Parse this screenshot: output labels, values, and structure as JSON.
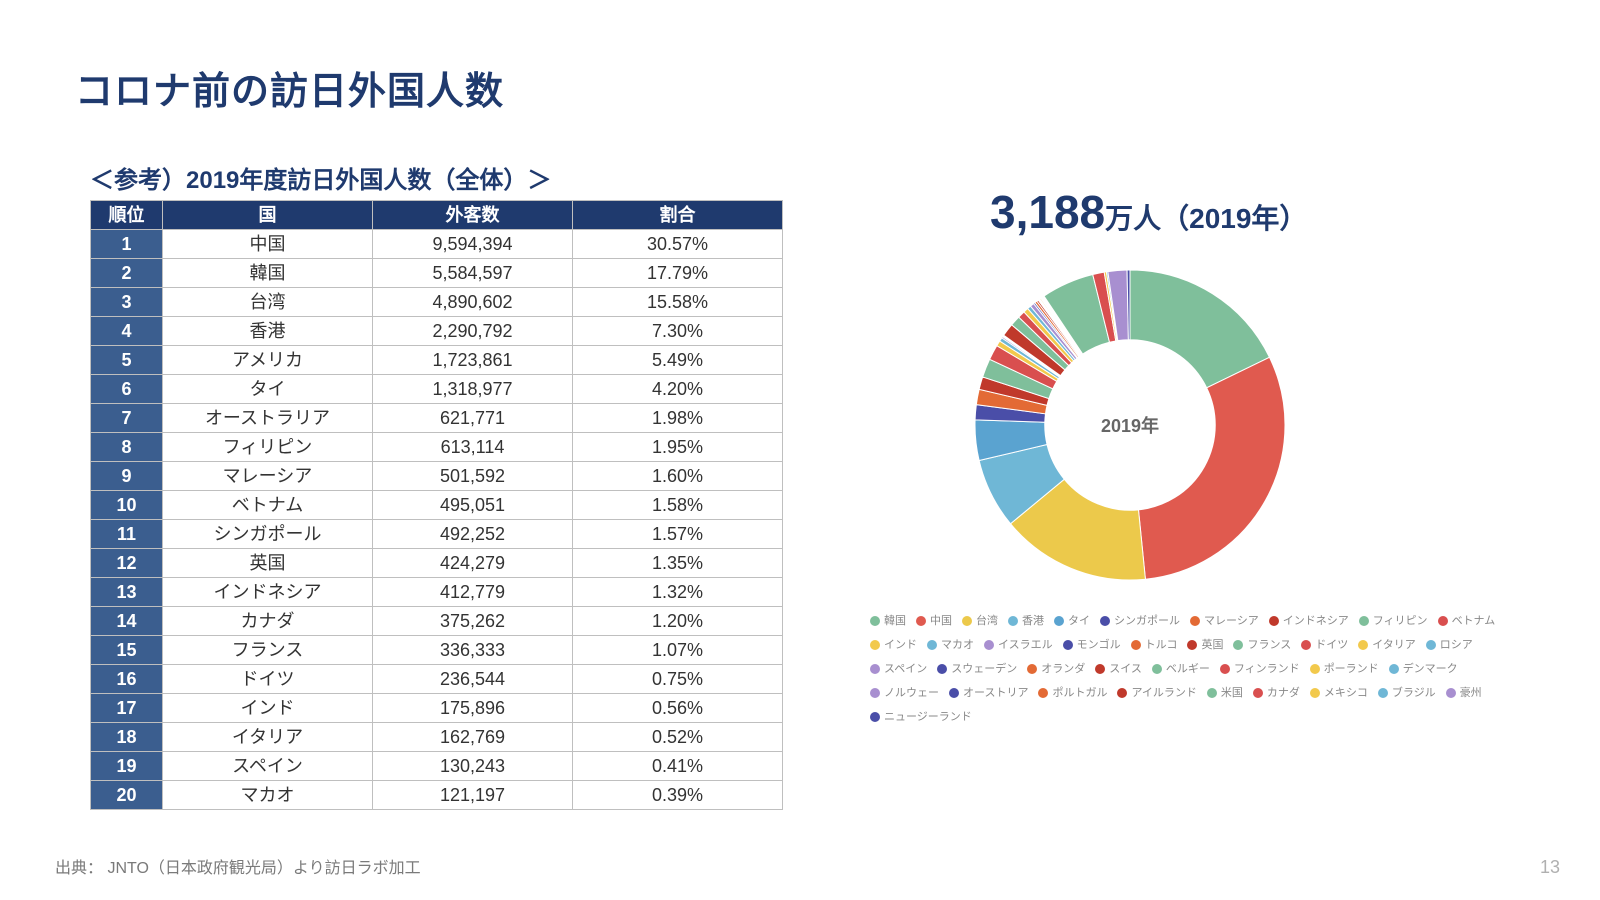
{
  "colors": {
    "title": "#1f3a6e",
    "subtitle": "#1f3a6e",
    "header_bg": "#1f3a6e",
    "rank_bg": "#3b5e8f",
    "right_title": "#1f3a6e"
  },
  "title": "コロナ前の訪日外国人数",
  "subtitle": "＜参考）2019年度訪日外国人数（全体）＞",
  "table": {
    "columns": [
      "順位",
      "国",
      "外客数",
      "割合"
    ],
    "rows": [
      [
        "1",
        "中国",
        "9,594,394",
        "30.57%"
      ],
      [
        "2",
        "韓国",
        "5,584,597",
        "17.79%"
      ],
      [
        "3",
        "台湾",
        "4,890,602",
        "15.58%"
      ],
      [
        "4",
        "香港",
        "2,290,792",
        "7.30%"
      ],
      [
        "5",
        "アメリカ",
        "1,723,861",
        "5.49%"
      ],
      [
        "6",
        "タイ",
        "1,318,977",
        "4.20%"
      ],
      [
        "7",
        "オーストラリア",
        "621,771",
        "1.98%"
      ],
      [
        "8",
        "フィリピン",
        "613,114",
        "1.95%"
      ],
      [
        "9",
        "マレーシア",
        "501,592",
        "1.60%"
      ],
      [
        "10",
        "ベトナム",
        "495,051",
        "1.58%"
      ],
      [
        "11",
        "シンガポール",
        "492,252",
        "1.57%"
      ],
      [
        "12",
        "英国",
        "424,279",
        "1.35%"
      ],
      [
        "13",
        "インドネシア",
        "412,779",
        "1.32%"
      ],
      [
        "14",
        "カナダ",
        "375,262",
        "1.20%"
      ],
      [
        "15",
        "フランス",
        "336,333",
        "1.07%"
      ],
      [
        "16",
        "ドイツ",
        "236,544",
        "0.75%"
      ],
      [
        "17",
        "インド",
        "175,896",
        "0.56%"
      ],
      [
        "18",
        "イタリア",
        "162,769",
        "0.52%"
      ],
      [
        "19",
        "スペイン",
        "130,243",
        "0.41%"
      ],
      [
        "20",
        "マカオ",
        "121,197",
        "0.39%"
      ]
    ]
  },
  "footnote": "出典： JNTO（日本政府観光局）より訪日ラボ加工",
  "pagenum": "13",
  "right": {
    "big_number": "3,188",
    "unit": "万人（2019年）",
    "center_label": "2019年"
  },
  "donut": {
    "inner_radius_pct": 55,
    "slices": [
      {
        "label": "韓国",
        "value": 17.79,
        "color": "#7fbf9b"
      },
      {
        "label": "中国",
        "value": 30.57,
        "color": "#e05a4f"
      },
      {
        "label": "台湾",
        "value": 15.58,
        "color": "#ecc94b"
      },
      {
        "label": "香港",
        "value": 7.3,
        "color": "#6fb7d6"
      },
      {
        "label": "タイ",
        "value": 4.2,
        "color": "#5aa3d0"
      },
      {
        "label": "シンガポール",
        "value": 1.57,
        "color": "#4a4ea8"
      },
      {
        "label": "マレーシア",
        "value": 1.6,
        "color": "#e36a35"
      },
      {
        "label": "インドネシア",
        "value": 1.32,
        "color": "#c0392b"
      },
      {
        "label": "フィリピン",
        "value": 1.95,
        "color": "#7fbf9b"
      },
      {
        "label": "ベトナム",
        "value": 1.58,
        "color": "#d94f4f"
      },
      {
        "label": "インド",
        "value": 0.56,
        "color": "#f2c94c"
      },
      {
        "label": "マカオ",
        "value": 0.39,
        "color": "#6fb7d6"
      },
      {
        "label": "イスラエル",
        "value": 0.15,
        "color": "#a88fd0"
      },
      {
        "label": "モンゴル",
        "value": 0.1,
        "color": "#4a4ea8"
      },
      {
        "label": "トルコ",
        "value": 0.08,
        "color": "#e36a35"
      },
      {
        "label": "英国",
        "value": 1.35,
        "color": "#c0392b"
      },
      {
        "label": "フランス",
        "value": 1.07,
        "color": "#7fbf9b"
      },
      {
        "label": "ドイツ",
        "value": 0.75,
        "color": "#d94f4f"
      },
      {
        "label": "イタリア",
        "value": 0.52,
        "color": "#f2c94c"
      },
      {
        "label": "ロシア",
        "value": 0.38,
        "color": "#6fb7d6"
      },
      {
        "label": "スペイン",
        "value": 0.41,
        "color": "#a88fd0"
      },
      {
        "label": "スウェーデン",
        "value": 0.18,
        "color": "#4a4ea8"
      },
      {
        "label": "オランダ",
        "value": 0.24,
        "color": "#e36a35"
      },
      {
        "label": "スイス",
        "value": 0.18,
        "color": "#c0392b"
      },
      {
        "label": "ベルギー",
        "value": 0.1,
        "color": "#7fbf9b"
      },
      {
        "label": "フィンランド",
        "value": 0.1,
        "color": "#d94f4f"
      },
      {
        "label": "ポーランド",
        "value": 0.12,
        "color": "#f2c94c"
      },
      {
        "label": "デンマーク",
        "value": 0.1,
        "color": "#6fb7d6"
      },
      {
        "label": "ノルウェー",
        "value": 0.08,
        "color": "#a88fd0"
      },
      {
        "label": "オーストリア",
        "value": 0.08,
        "color": "#4a4ea8"
      },
      {
        "label": "ポルトガル",
        "value": 0.08,
        "color": "#e36a35"
      },
      {
        "label": "アイルランド",
        "value": 0.06,
        "color": "#c0392b"
      },
      {
        "label": "米国",
        "value": 5.49,
        "color": "#7fbf9b"
      },
      {
        "label": "カナダ",
        "value": 1.2,
        "color": "#d94f4f"
      },
      {
        "label": "メキシコ",
        "value": 0.23,
        "color": "#f2c94c"
      },
      {
        "label": "ブラジル",
        "value": 0.15,
        "color": "#6fb7d6"
      },
      {
        "label": "豪州",
        "value": 1.98,
        "color": "#a88fd0"
      },
      {
        "label": "ニュージーランド",
        "value": 0.3,
        "color": "#4a4ea8"
      }
    ]
  }
}
